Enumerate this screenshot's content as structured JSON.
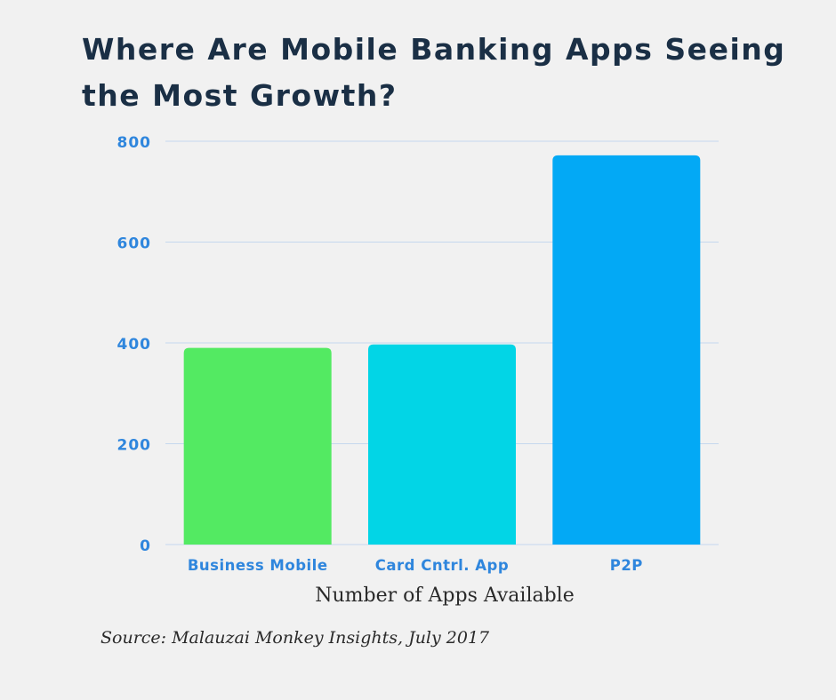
{
  "chart_data": {
    "type": "bar",
    "title": "Where Are Mobile Banking Apps Seeing the Most Growth?",
    "xlabel": "Number of Apps Available",
    "ylabel": "",
    "categories": [
      "Business Mobile",
      "Card Cntrl. App",
      "P2P"
    ],
    "values": [
      390,
      397,
      772
    ],
    "colors": [
      "#53ea62",
      "#02d5e6",
      "#03a9f5"
    ],
    "ylim": [
      0,
      800
    ],
    "yticks": [
      0,
      200,
      400,
      600,
      800
    ],
    "grid": true,
    "legend": "none"
  },
  "source": "Source: Malauzai Monkey Insights, July 2017",
  "theme": {
    "background": "#f1f1f1",
    "title_color": "#1a2f45",
    "tick_color": "#2f86dd",
    "grid_color": "#c5d8ee"
  }
}
